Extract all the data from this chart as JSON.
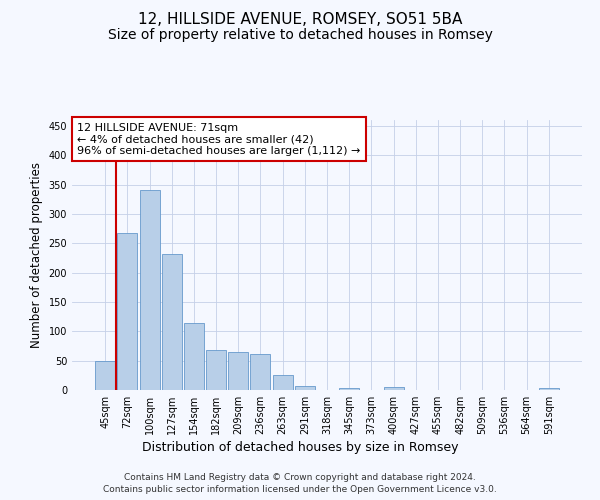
{
  "title_line1": "12, HILLSIDE AVENUE, ROMSEY, SO51 5BA",
  "title_line2": "Size of property relative to detached houses in Romsey",
  "xlabel": "Distribution of detached houses by size in Romsey",
  "ylabel": "Number of detached properties",
  "categories": [
    "45sqm",
    "72sqm",
    "100sqm",
    "127sqm",
    "154sqm",
    "182sqm",
    "209sqm",
    "236sqm",
    "263sqm",
    "291sqm",
    "318sqm",
    "345sqm",
    "373sqm",
    "400sqm",
    "427sqm",
    "455sqm",
    "482sqm",
    "509sqm",
    "536sqm",
    "564sqm",
    "591sqm"
  ],
  "values": [
    50,
    267,
    340,
    232,
    115,
    68,
    65,
    62,
    25,
    7,
    0,
    3,
    0,
    5,
    0,
    0,
    0,
    0,
    0,
    0,
    4
  ],
  "bar_color": "#b8cfe8",
  "bar_edge_color": "#6699cc",
  "highlight_color": "#cc0000",
  "annotation_text": "12 HILLSIDE AVENUE: 71sqm\n← 4% of detached houses are smaller (42)\n96% of semi-detached houses are larger (1,112) →",
  "ylim": [
    0,
    460
  ],
  "yticks": [
    0,
    50,
    100,
    150,
    200,
    250,
    300,
    350,
    400,
    450
  ],
  "footer_line1": "Contains HM Land Registry data © Crown copyright and database right 2024.",
  "footer_line2": "Contains public sector information licensed under the Open Government Licence v3.0.",
  "background_color": "#f5f8ff",
  "grid_color": "#c5d0e8",
  "title_fontsize": 11,
  "subtitle_fontsize": 10,
  "tick_fontsize": 7,
  "ylabel_fontsize": 8.5,
  "xlabel_fontsize": 9,
  "footer_fontsize": 6.5
}
